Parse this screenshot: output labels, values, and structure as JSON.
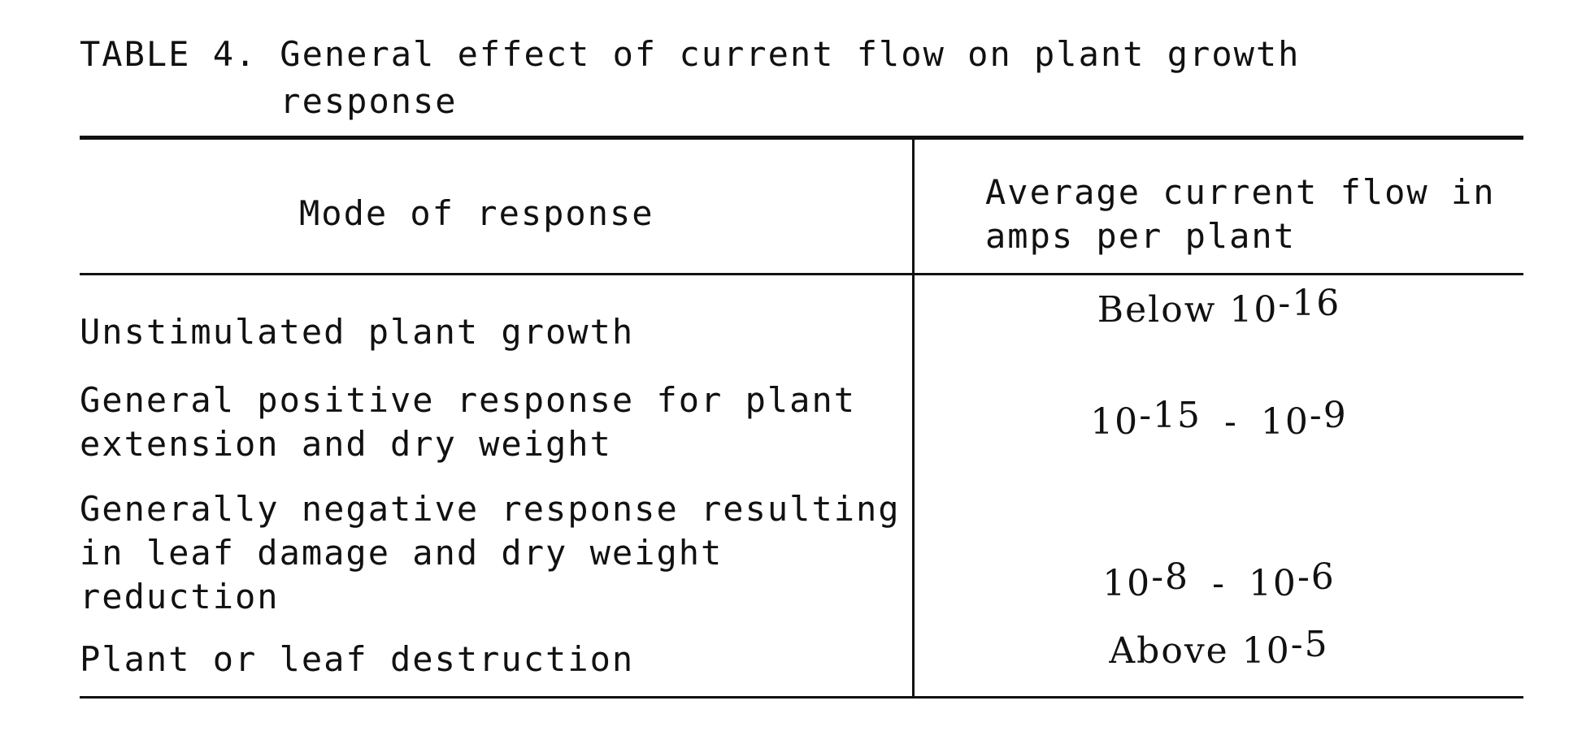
{
  "table": {
    "label": "TABLE 4.",
    "title": "General effect of current flow on plant growth response",
    "headers": {
      "mode": "Mode of response",
      "current": "Average current flow in amps per plant"
    },
    "rows": [
      {
        "mode": "Unstimulated plant growth",
        "current": {
          "prefix": "Below ",
          "base1": "10",
          "exp1": "-16",
          "sep": "",
          "base2": "",
          "exp2": ""
        }
      },
      {
        "mode": "General positive response for plant extension and dry weight",
        "current": {
          "prefix": "",
          "base1": "10",
          "exp1": "-15",
          "sep": "-",
          "base2": "10",
          "exp2": "-9"
        }
      },
      {
        "mode": "Generally negative response resulting in leaf damage and dry weight reduction",
        "current": {
          "prefix": "",
          "base1": "10",
          "exp1": "-8",
          "sep": "-",
          "base2": "10",
          "exp2": "-6"
        }
      },
      {
        "mode": "Plant or leaf destruction",
        "current": {
          "prefix": "Above ",
          "base1": "10",
          "exp1": "-5",
          "sep": "",
          "base2": "",
          "exp2": ""
        }
      }
    ]
  }
}
